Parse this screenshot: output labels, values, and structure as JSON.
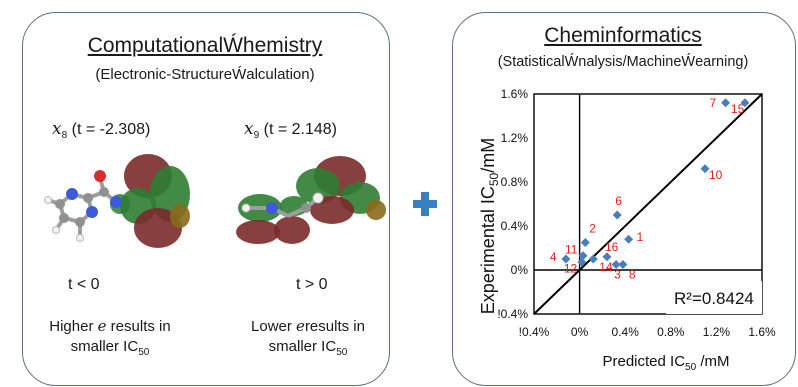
{
  "left": {
    "title": "ComputationalẂhemistry",
    "subtitle": "(Electronic-StructureẂalculation)",
    "mol1": {
      "symbol": "x",
      "sub": "8",
      "t_text": "(t = -2.308)",
      "condition": "t < 0",
      "desc_line1a": "Higher ",
      "desc_line1b": " results in",
      "desc_line2": "smaller IC",
      "desc_sub": "50"
    },
    "mol2": {
      "symbol": "x",
      "sub": "9",
      "t_text": "(t = 2.148)",
      "condition": "t > 0",
      "desc_line1a": "Lower ",
      "desc_line1b": "results in",
      "desc_line2": "smaller IC",
      "desc_sub": "50"
    },
    "energy_symbol": "e"
  },
  "right": {
    "title": "Cheminformatics",
    "subtitle": "(StatisticalẂnalysis/MachineẂearning)"
  },
  "chart_data": {
    "type": "scatter",
    "xlabel": "Predicted IC",
    "xlabel_sub": "50",
    "xlabel_unit": " /mM",
    "ylabel": "Experimental IC",
    "ylabel_sub": "50",
    "ylabel_unit": "/mM",
    "xlim": [
      -0.4,
      1.6
    ],
    "ylim": [
      -0.4,
      1.6
    ],
    "xticks": [
      -0.4,
      0,
      0.4,
      0.8,
      1.2,
      1.6
    ],
    "xtick_labels": [
      "!0.4%",
      "0%",
      "0.4%",
      "0.8%",
      "1.2%",
      "1.6%"
    ],
    "yticks": [
      -0.4,
      0,
      0.4,
      0.8,
      1.2,
      1.6
    ],
    "ytick_labels": [
      "!0.4%",
      "0%",
      "0.4%",
      "0.8%",
      "1.2%",
      "1.6%"
    ],
    "annotation": "R²=0.8424",
    "marker_color": "#4a7ebb",
    "label_color": "#e0201b",
    "points": [
      {
        "id": "1",
        "x": 0.43,
        "y": 0.28
      },
      {
        "id": "2",
        "x": 0.05,
        "y": 0.25
      },
      {
        "id": "3",
        "x": 0.32,
        "y": 0.05
      },
      {
        "id": "4",
        "x": -0.12,
        "y": 0.1
      },
      {
        "id": "6",
        "x": 0.33,
        "y": 0.5
      },
      {
        "id": "7",
        "x": 1.28,
        "y": 1.52
      },
      {
        "id": "8",
        "x": 0.38,
        "y": 0.05
      },
      {
        "id": "10",
        "x": 1.1,
        "y": 0.92
      },
      {
        "id": "11",
        "x": 0.03,
        "y": 0.13
      },
      {
        "id": "12",
        "x": 0.02,
        "y": 0.07
      },
      {
        "id": "14",
        "x": 0.12,
        "y": 0.1
      },
      {
        "id": "15",
        "x": 1.45,
        "y": 1.52
      },
      {
        "id": "16",
        "x": 0.24,
        "y": 0.12
      }
    ]
  }
}
